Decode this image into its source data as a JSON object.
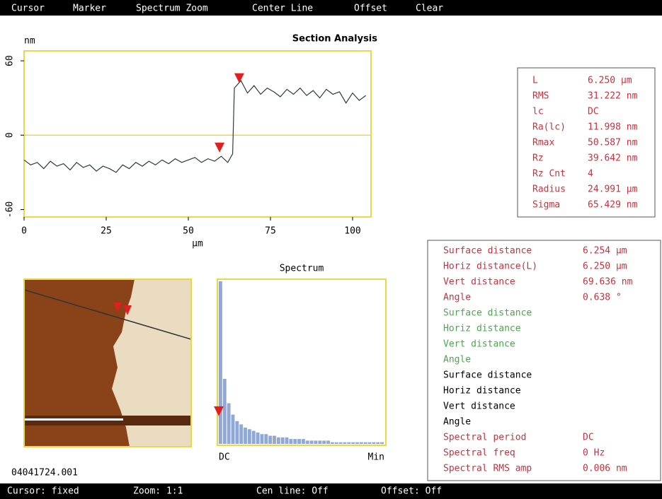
{
  "menu": [
    "Cursor",
    "Marker",
    "Spectrum Zoom",
    "Center Line",
    "Offset",
    "Clear"
  ],
  "chart_data": {
    "type": "line",
    "title": "Section Analysis",
    "y_label": "nm",
    "x_label": "µm",
    "x": [
      0,
      2,
      4,
      6,
      8,
      10,
      12,
      14,
      16,
      18,
      20,
      22,
      24,
      26,
      28,
      30,
      32,
      34,
      36,
      38,
      40,
      42,
      44,
      46,
      48,
      50,
      52,
      54,
      56,
      58,
      60,
      62,
      63.5,
      64,
      66,
      68,
      70,
      72,
      74,
      76,
      78,
      80,
      82,
      84,
      86,
      88,
      90,
      92,
      94,
      96,
      98,
      100,
      102,
      104
    ],
    "values": [
      -20,
      -24,
      -22,
      -27,
      -21,
      -25,
      -23,
      -28,
      -22,
      -26,
      -24,
      -29,
      -25,
      -27,
      -30,
      -24,
      -27,
      -22,
      -25,
      -21,
      -24,
      -20,
      -23,
      -19,
      -22,
      -20,
      -18,
      -22,
      -19,
      -21,
      -17,
      -22,
      -15,
      38,
      44,
      34,
      40,
      33,
      38,
      35,
      31,
      37,
      33,
      38,
      32,
      36,
      30,
      37,
      33,
      35,
      26,
      34,
      28,
      32
    ],
    "color": "#2f3b3b",
    "frame_color": "#e8d84a",
    "reference_line": 0,
    "xlim": [
      0,
      105.6
    ],
    "ylim": [
      -66,
      68
    ],
    "xticks": [
      0,
      25,
      50,
      75,
      100
    ],
    "yticks": [
      60,
      0,
      -60
    ],
    "markers": {
      "x": [
        59.5,
        65.5
      ],
      "y": [
        -14,
        42
      ],
      "color": "#e02020"
    }
  },
  "spectrum": {
    "title": "Spectrum",
    "start_label": "DC",
    "end_label": "Min",
    "color": "#8fa8d8",
    "cursor_value": 17,
    "values": [
      100,
      40,
      25,
      18,
      14,
      12,
      10,
      9,
      8,
      7,
      6,
      6,
      5,
      5,
      4,
      4,
      4,
      3,
      3,
      3,
      3,
      2,
      2,
      2,
      2,
      2,
      2,
      1,
      1,
      1,
      1,
      1,
      1,
      1,
      1,
      1,
      1,
      1,
      1,
      1
    ]
  },
  "image": {
    "filename": "04041724.001"
  },
  "stats": {
    "rows": [
      [
        "L",
        "6.250 µm"
      ],
      [
        "RMS",
        "31.222 nm"
      ],
      [
        "lc",
        "DC"
      ],
      [
        "Ra(lc)",
        "11.998 nm"
      ],
      [
        "Rmax",
        "50.587 nm"
      ],
      [
        "Rz",
        "39.642 nm"
      ],
      [
        "Rz Cnt",
        "4"
      ],
      [
        "Radius",
        "24.991 µm"
      ],
      [
        "Sigma",
        "65.429 nm"
      ]
    ],
    "color": "#c8323c"
  },
  "measurements": {
    "rows": [
      {
        "label": "Surface distance",
        "value": "6.254 µm",
        "color": "#c8323c"
      },
      {
        "label": "Horiz distance(L)",
        "value": "6.250 µm",
        "color": "#c8323c"
      },
      {
        "label": "Vert distance",
        "value": "69.636 nm",
        "color": "#c8323c"
      },
      {
        "label": "Angle",
        "value": "0.638 °",
        "color": "#c8323c"
      },
      {
        "label": "Surface distance",
        "color": "#4aa84a"
      },
      {
        "label": "Horiz distance",
        "color": "#4aa84a"
      },
      {
        "label": "Vert distance",
        "color": "#4aa84a"
      },
      {
        "label": "Angle",
        "color": "#4aa84a"
      },
      {
        "label": "Surface distance",
        "color": "#000000"
      },
      {
        "label": "Horiz distance",
        "color": "#000000"
      },
      {
        "label": "Vert distance",
        "color": "#000000"
      },
      {
        "label": "Angle",
        "color": "#000000"
      },
      {
        "label": "Spectral period",
        "value": "DC",
        "color": "#c8323c"
      },
      {
        "label": "Spectral freq",
        "value": "0 Hz",
        "color": "#c8323c"
      },
      {
        "label": "Spectral RMS amp",
        "value": "0.006 nm",
        "color": "#c8323c"
      }
    ]
  },
  "status": [
    "Cursor: fixed",
    "Zoom: 1:1",
    "Cen line: Off",
    "Offset: Off"
  ]
}
